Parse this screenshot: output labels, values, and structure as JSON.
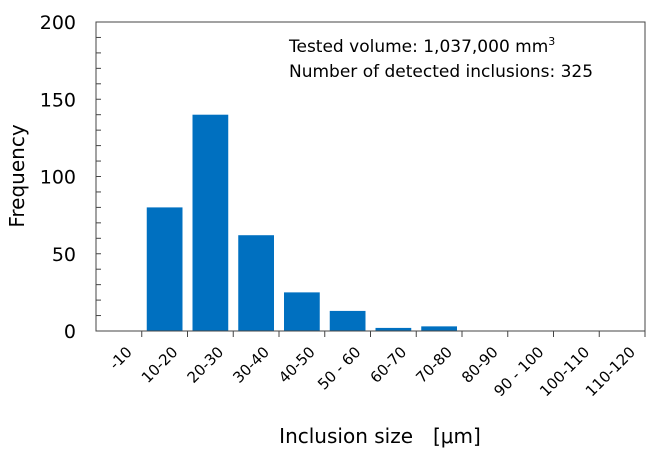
{
  "chart_data": {
    "type": "bar",
    "title": "",
    "xlabel": "Inclusion size　[μm]",
    "ylabel": "Frequency",
    "categories": [
      "-10",
      "10-20",
      "20-30",
      "30-40",
      "40-50",
      "50 - 60",
      "60-70",
      "70-80",
      "80-90",
      "90 - 100",
      "100-110",
      "110-120"
    ],
    "values": [
      0,
      80,
      140,
      62,
      25,
      13,
      2,
      3,
      0,
      0,
      0,
      0
    ],
    "ylim": [
      0,
      200
    ],
    "yticks": [
      0,
      50,
      100,
      150,
      200
    ],
    "grid": false,
    "bar_color": "#0070C0",
    "annotations": {
      "line1": "Tested volume: 1,037,000 mm",
      "line1_sup": "3",
      "line2": "Number of detected inclusions: 325"
    }
  }
}
